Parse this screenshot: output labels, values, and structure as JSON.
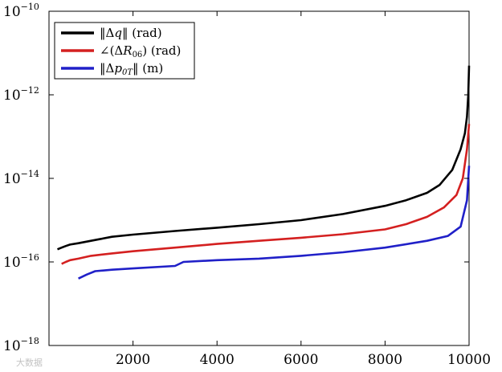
{
  "chart_data": {
    "type": "line",
    "yscale": "log",
    "xlim": [
      0,
      10000
    ],
    "ylim": [
      1e-18,
      1e-10
    ],
    "x_ticks": [
      {
        "value": 2000,
        "label": "2000"
      },
      {
        "value": 4000,
        "label": "4000"
      },
      {
        "value": 6000,
        "label": "6000"
      },
      {
        "value": 8000,
        "label": "8000"
      },
      {
        "value": 10000,
        "label": "10000"
      }
    ],
    "y_ticks": [
      {
        "value": 1e-18,
        "base": "10",
        "exp": "−18"
      },
      {
        "value": 1e-16,
        "base": "10",
        "exp": "−16"
      },
      {
        "value": 1e-14,
        "base": "10",
        "exp": "−14"
      },
      {
        "value": 1e-12,
        "base": "10",
        "exp": "−12"
      },
      {
        "value": 1e-10,
        "base": "10",
        "exp": "−10"
      }
    ],
    "legend_position": "top-left",
    "grid": false,
    "series": [
      {
        "name": "‖Δq‖ (rad)",
        "color": "#000000",
        "x": [
          200,
          300,
          400,
          500,
          700,
          1000,
          1200,
          1500,
          2000,
          3000,
          4000,
          5000,
          6000,
          7000,
          8000,
          8500,
          9000,
          9300,
          9600,
          9800,
          9900,
          9950,
          9980,
          10000
        ],
        "y": [
          2e-16,
          2.2e-16,
          2.4e-16,
          2.6e-16,
          2.8e-16,
          3.2e-16,
          3.5e-16,
          4e-16,
          4.5e-16,
          5.5e-16,
          6.6e-16,
          8e-16,
          1e-15,
          1.4e-15,
          2.2e-15,
          3e-15,
          4.5e-15,
          7e-15,
          1.6e-14,
          5e-14,
          1.2e-13,
          3e-13,
          1e-12,
          5e-12
        ]
      },
      {
        "name": "∠(ΔR06) (rad)",
        "color": "#d42020",
        "x": [
          300,
          400,
          500,
          700,
          1000,
          1500,
          2000,
          3000,
          4000,
          5000,
          6000,
          7000,
          8000,
          8500,
          9000,
          9400,
          9700,
          9850,
          9950,
          10000
        ],
        "y": [
          9e-17,
          1e-16,
          1.1e-16,
          1.2e-16,
          1.4e-16,
          1.6e-16,
          1.8e-16,
          2.2e-16,
          2.7e-16,
          3.2e-16,
          3.8e-16,
          4.6e-16,
          6e-16,
          8e-16,
          1.2e-15,
          2e-15,
          4e-15,
          1e-14,
          5e-14,
          2e-13
        ]
      },
      {
        "name": "‖Δp0T‖ (m)",
        "color": "#2020c8",
        "x": [
          700,
          900,
          1100,
          1500,
          2000,
          3000,
          3200,
          4000,
          5000,
          6000,
          7000,
          8000,
          9000,
          9500,
          9800,
          9950,
          10000
        ],
        "y": [
          4e-17,
          5e-17,
          6e-17,
          6.5e-17,
          7e-17,
          8e-17,
          1e-16,
          1.1e-16,
          1.2e-16,
          1.4e-16,
          1.7e-16,
          2.2e-16,
          3.2e-16,
          4.2e-16,
          7e-16,
          3e-15,
          2e-14
        ]
      }
    ]
  },
  "legend": {
    "entries": [
      {
        "prefix": "‖Δ",
        "var": "q",
        "sub": "",
        "suffix": "‖ (rad)"
      },
      {
        "prefix": "∠(Δ",
        "var": "R",
        "sub": "06",
        "suffix": ") (rad)"
      },
      {
        "prefix": "‖Δ",
        "var": "p",
        "sub": "0T",
        "suffix": "‖ (m)"
      }
    ]
  },
  "watermark": {
    "text": "大数据"
  }
}
